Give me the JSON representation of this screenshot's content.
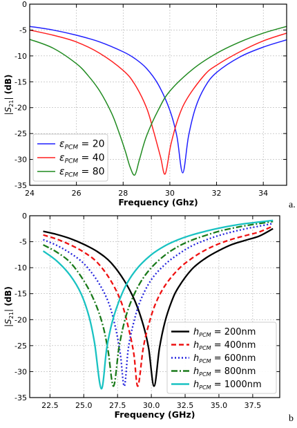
{
  "chart_data": [
    {
      "type": "line",
      "panel_label": "a.",
      "xlabel": "Frequency (Ghz)",
      "ylabel": "|S21| (dB)",
      "xlim": [
        24,
        35
      ],
      "ylim": [
        -35,
        0
      ],
      "xticks": [
        24,
        26,
        28,
        30,
        32,
        34
      ],
      "yticks": [
        0,
        -5,
        -10,
        -15,
        -20,
        -25,
        -30,
        -35
      ],
      "grid": true,
      "legend_position": "lower-left",
      "series": [
        {
          "name": "ε_PCM = 20",
          "sym": "ε",
          "sub": "PCM",
          "val": " = 20",
          "color": "#1f1fff",
          "x": [
            24,
            25,
            26,
            27,
            28,
            28.5,
            29,
            29.5,
            30,
            30.3,
            30.55,
            30.8,
            31.1,
            31.5,
            32,
            33,
            34,
            35
          ],
          "y": [
            -4.3,
            -5.0,
            -6.0,
            -7.3,
            -9.2,
            -10.5,
            -12.4,
            -15.5,
            -20.5,
            -25.5,
            -32.6,
            -25.5,
            -20.0,
            -16.0,
            -13.2,
            -10.2,
            -8.3,
            -6.9
          ]
        },
        {
          "name": "ε_PCM = 40",
          "sym": "ε",
          "sub": "PCM",
          "val": " = 40",
          "color": "#ff1f1f",
          "x": [
            24,
            25,
            26,
            27,
            28,
            28.5,
            29,
            29.3,
            29.6,
            29.8,
            30.05,
            30.4,
            30.8,
            31.5,
            32,
            33,
            34,
            35
          ],
          "y": [
            -5.0,
            -6.0,
            -7.3,
            -9.5,
            -12.8,
            -15.5,
            -20.0,
            -24.5,
            -29.5,
            -32.8,
            -27.0,
            -21.5,
            -17.8,
            -13.6,
            -11.8,
            -9.2,
            -7.1,
            -5.6
          ]
        },
        {
          "name": "ε_PCM = 80",
          "sym": "ε",
          "sub": "PCM",
          "val": " = 80",
          "color": "#1f8a1f",
          "x": [
            24,
            25,
            26,
            26.5,
            27,
            27.5,
            27.8,
            28.1,
            28.3,
            28.5,
            28.7,
            29,
            29.5,
            30,
            31,
            32,
            33,
            34,
            35
          ],
          "y": [
            -6.8,
            -8.5,
            -11.5,
            -13.8,
            -16.8,
            -21.0,
            -24.5,
            -28.5,
            -31.5,
            -33.0,
            -30.0,
            -25.5,
            -20.5,
            -16.8,
            -12.5,
            -9.5,
            -7.3,
            -5.6,
            -4.3
          ]
        }
      ]
    },
    {
      "type": "line",
      "panel_label": "b",
      "xlabel": "Frequency (GHz)",
      "ylabel": "|S21| (dB)",
      "xlim": [
        21,
        39.5
      ],
      "ylim": [
        -35,
        0
      ],
      "xticks": [
        22.5,
        25.0,
        27.5,
        30.0,
        32.5,
        35.0,
        37.5
      ],
      "yticks": [
        0,
        -5,
        -10,
        -15,
        -20,
        -25,
        -30,
        -35
      ],
      "grid": true,
      "legend_position": "lower-right",
      "series": [
        {
          "name": "h_PCM = 200nm",
          "sym": "h",
          "sub": "PCM",
          "val": " = 200nm",
          "color": "#000000",
          "dash": "",
          "x": [
            22,
            23,
            24,
            25,
            26,
            27,
            28,
            28.8,
            29.4,
            29.8,
            30.2,
            30.6,
            31,
            31.5,
            32,
            33,
            34,
            35,
            36,
            37,
            38,
            39
          ],
          "y": [
            -3.0,
            -3.6,
            -4.4,
            -5.5,
            -6.9,
            -9.0,
            -12.5,
            -16.5,
            -21.0,
            -25.5,
            -32.8,
            -25.5,
            -20.5,
            -16.5,
            -13.8,
            -10.3,
            -8.2,
            -6.7,
            -5.5,
            -4.7,
            -3.9,
            -2.5
          ]
        },
        {
          "name": "h_PCM = 400nm",
          "sym": "h",
          "sub": "PCM",
          "val": " = 400nm",
          "color": "#ee1111",
          "dash": "7,4",
          "x": [
            22,
            23,
            24,
            25,
            26,
            27,
            27.8,
            28.3,
            28.7,
            29.0,
            29.4,
            29.8,
            30.3,
            31,
            32,
            33,
            34,
            35,
            36,
            37,
            38,
            39
          ],
          "y": [
            -3.7,
            -4.5,
            -5.6,
            -7.0,
            -9.0,
            -12.5,
            -16.8,
            -21.5,
            -26.5,
            -32.8,
            -25.5,
            -21.0,
            -17.0,
            -13.5,
            -10.3,
            -8.2,
            -6.6,
            -5.4,
            -4.5,
            -3.8,
            -3.1,
            -2.0
          ]
        },
        {
          "name": "h_PCM = 600nm",
          "sym": "h",
          "sub": "PCM",
          "val": " = 600nm",
          "color": "#2222dd",
          "dash": "2,3",
          "x": [
            22,
            23,
            24,
            25,
            26,
            26.8,
            27.3,
            27.7,
            28.0,
            28.3,
            28.7,
            29.2,
            30,
            31,
            32,
            33,
            34,
            35,
            36,
            37,
            38,
            39
          ],
          "y": [
            -4.6,
            -5.7,
            -7.2,
            -9.2,
            -12.5,
            -16.5,
            -21.0,
            -26.5,
            -32.8,
            -25.5,
            -20.5,
            -16.3,
            -12.3,
            -9.4,
            -7.4,
            -5.8,
            -4.7,
            -3.8,
            -3.1,
            -2.5,
            -2.0,
            -1.5
          ]
        },
        {
          "name": "h_PCM = 800nm",
          "sym": "h",
          "sub": "PCM",
          "val": " = 800nm",
          "color": "#1a7a1a",
          "dash": "9,3,2,3",
          "x": [
            22,
            23,
            24,
            25,
            25.8,
            26.4,
            26.8,
            27.2,
            27.6,
            28.0,
            28.5,
            29.2,
            30,
            31,
            32,
            33,
            34,
            35,
            36,
            37,
            38,
            39
          ],
          "y": [
            -5.6,
            -7.0,
            -9.0,
            -12.5,
            -16.5,
            -21.0,
            -26.0,
            -32.8,
            -25.5,
            -20.5,
            -16.5,
            -12.8,
            -10.0,
            -7.6,
            -5.9,
            -4.7,
            -3.8,
            -3.0,
            -2.4,
            -1.9,
            -1.5,
            -1.1
          ]
        },
        {
          "name": "h_PCM = 1000nm",
          "sym": "h",
          "sub": "PCM",
          "val": " = 1000nm",
          "color": "#19c2c2",
          "dash": "",
          "x": [
            22,
            23,
            24,
            24.8,
            25.4,
            25.8,
            26.3,
            26.7,
            27.1,
            27.6,
            28.2,
            29,
            30,
            31,
            32,
            33,
            34,
            35,
            36,
            37,
            38,
            39
          ],
          "y": [
            -6.8,
            -8.7,
            -11.5,
            -15.0,
            -19.5,
            -24.5,
            -33.3,
            -25.5,
            -20.5,
            -16.5,
            -13.0,
            -10.0,
            -7.5,
            -5.8,
            -4.6,
            -3.7,
            -3.0,
            -2.4,
            -1.9,
            -1.5,
            -1.2,
            -0.9
          ]
        }
      ]
    }
  ]
}
